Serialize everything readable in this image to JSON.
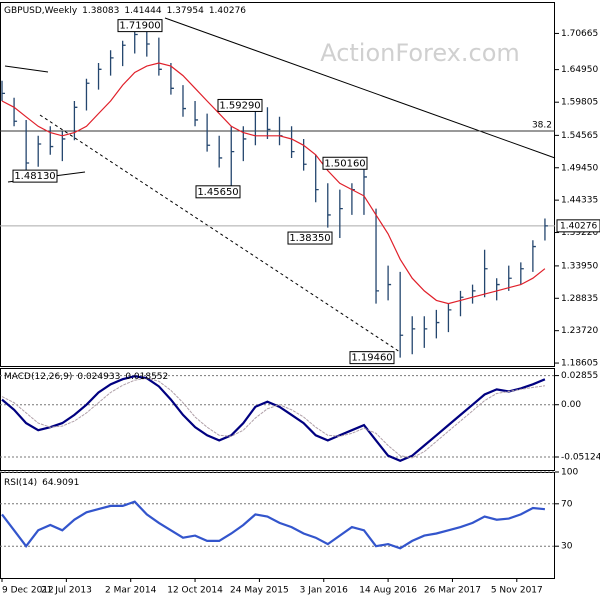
{
  "chart_data": [
    {
      "type": "ohlc",
      "title": "GBPUSD,Weekly",
      "header_values": [
        1.38083,
        1.41444,
        1.37954,
        1.40276
      ],
      "watermark": "ActionForex.com",
      "color": "#24466e",
      "x": [
        0,
        6,
        12,
        18,
        24,
        30,
        36,
        42,
        48,
        54,
        60,
        66,
        72,
        78,
        84,
        90,
        96,
        102,
        108,
        114,
        120,
        126,
        132,
        138,
        144,
        150,
        156,
        162,
        168,
        174,
        180,
        186,
        192,
        198,
        204,
        210,
        216,
        222,
        228,
        234,
        240,
        246,
        252,
        258,
        264,
        270
      ],
      "high": [
        1.632,
        1.605,
        1.57,
        1.545,
        1.56,
        1.552,
        1.6,
        1.635,
        1.66,
        1.68,
        1.695,
        1.719,
        1.712,
        1.7,
        1.66,
        1.625,
        1.6,
        1.58,
        1.545,
        1.56,
        1.56,
        1.5929,
        1.59,
        1.575,
        1.56,
        1.54,
        1.515,
        1.47,
        1.46,
        1.47,
        1.5016,
        1.43,
        1.34,
        1.33,
        1.26,
        1.26,
        1.27,
        1.28,
        1.3,
        1.31,
        1.365,
        1.32,
        1.34,
        1.345,
        1.38,
        1.41444
      ],
      "low": [
        1.6,
        1.56,
        1.4813,
        1.496,
        1.515,
        1.505,
        1.538,
        1.585,
        1.618,
        1.64,
        1.655,
        1.675,
        1.67,
        1.64,
        1.61,
        1.575,
        1.56,
        1.52,
        1.495,
        1.4565,
        1.505,
        1.53,
        1.54,
        1.53,
        1.51,
        1.49,
        1.44,
        1.4,
        1.3835,
        1.42,
        1.42,
        1.28,
        1.285,
        1.1946,
        1.2,
        1.21,
        1.225,
        1.235,
        1.26,
        1.28,
        1.29,
        1.285,
        1.3,
        1.31,
        1.33,
        1.37954
      ],
      "close": [
        1.612,
        1.568,
        1.502,
        1.532,
        1.528,
        1.54,
        1.59,
        1.628,
        1.65,
        1.668,
        1.688,
        1.705,
        1.69,
        1.65,
        1.62,
        1.588,
        1.57,
        1.53,
        1.51,
        1.52,
        1.54,
        1.585,
        1.555,
        1.545,
        1.52,
        1.5,
        1.46,
        1.42,
        1.43,
        1.46,
        1.48,
        1.3,
        1.31,
        1.23,
        1.24,
        1.24,
        1.25,
        1.27,
        1.29,
        1.3,
        1.335,
        1.31,
        1.32,
        1.335,
        1.37,
        1.40276
      ],
      "ma": {
        "color": "#e0202a",
        "values": [
          1.6,
          1.59,
          1.575,
          1.56,
          1.55,
          1.545,
          1.55,
          1.56,
          1.58,
          1.6,
          1.625,
          1.645,
          1.655,
          1.66,
          1.655,
          1.64,
          1.62,
          1.6,
          1.58,
          1.56,
          1.55,
          1.545,
          1.545,
          1.545,
          1.54,
          1.53,
          1.515,
          1.49,
          1.47,
          1.46,
          1.45,
          1.42,
          1.39,
          1.35,
          1.32,
          1.3,
          1.285,
          1.28,
          1.285,
          1.29,
          1.295,
          1.3,
          1.305,
          1.31,
          1.32,
          1.335
        ]
      },
      "annotations": [
        {
          "value": 1.719,
          "label": "1.71900"
        },
        {
          "value": 1.5929,
          "label": "1.59290"
        },
        {
          "value": 1.4813,
          "label": "1.48130"
        },
        {
          "value": 1.4565,
          "label": "1.45650"
        },
        {
          "value": 1.5016,
          "label": "1.50160"
        },
        {
          "value": 1.3835,
          "label": "1.38350"
        },
        {
          "value": 1.1946,
          "label": "1.19460"
        }
      ],
      "fib": {
        "ratio": 38.2,
        "level": 1.5525
      },
      "xlim": [
        -1,
        275
      ],
      "xticks": [
        {
          "value": 0,
          "label": "9 Dec 2012"
        },
        {
          "value": 32,
          "label": "21 Jul 2013"
        },
        {
          "value": 64,
          "label": "2 Mar 2014"
        },
        {
          "value": 96,
          "label": "12 Oct 2014"
        },
        {
          "value": 128,
          "label": "24 May 2015"
        },
        {
          "value": 160,
          "label": "3 Jan 2016"
        },
        {
          "value": 192,
          "label": "14 Aug 2016"
        },
        {
          "value": 224,
          "label": "26 Mar 2017"
        },
        {
          "value": 256,
          "label": "5 Nov 2017"
        }
      ],
      "ylim": [
        1.1814,
        1.7563
      ],
      "yticks": [
        1.70665,
        {
          "value": 1.6495,
          "label": "1.64950"
        },
        1.59805,
        1.54565,
        {
          "value": 1.4945,
          "label": "1.49450"
        },
        1.44335,
        {
          "value": 1.3922,
          "label": "1.39220"
        },
        {
          "value": 1.3395,
          "label": "1.33950"
        },
        1.28835,
        {
          "value": 1.2372,
          "label": "1.23720"
        },
        1.18605
      ]
    },
    {
      "type": "line",
      "title": "MACD(12,26,9)",
      "header_values": [
        0.024933,
        0.018552
      ],
      "series": [
        {
          "color": "#000080",
          "values": [
            0.005,
            -0.005,
            -0.018,
            -0.025,
            -0.022,
            -0.018,
            -0.01,
            0.0,
            0.012,
            0.02,
            0.025,
            0.028,
            0.026,
            0.018,
            0.005,
            -0.01,
            -0.022,
            -0.03,
            -0.035,
            -0.03,
            -0.018,
            -0.002,
            0.003,
            -0.002,
            -0.01,
            -0.018,
            -0.03,
            -0.035,
            -0.03,
            -0.025,
            -0.02,
            -0.035,
            -0.05,
            -0.055,
            -0.05,
            -0.04,
            -0.03,
            -0.02,
            -0.01,
            0.0,
            0.01,
            0.015,
            0.013,
            0.016,
            0.02,
            0.024933
          ]
        },
        {
          "color": "#b0a0a8",
          "values": [
            0.008,
            0.002,
            -0.008,
            -0.018,
            -0.022,
            -0.021,
            -0.016,
            -0.008,
            0.002,
            0.012,
            0.019,
            0.024,
            0.026,
            0.023,
            0.014,
            0.002,
            -0.012,
            -0.022,
            -0.03,
            -0.031,
            -0.025,
            -0.013,
            -0.004,
            0.0,
            -0.005,
            -0.012,
            -0.022,
            -0.03,
            -0.031,
            -0.028,
            -0.023,
            -0.028,
            -0.04,
            -0.05,
            -0.052,
            -0.046,
            -0.036,
            -0.026,
            -0.016,
            -0.006,
            0.004,
            0.011,
            0.013,
            0.015,
            0.017,
            0.018552
          ]
        }
      ],
      "ylim": [
        -0.064,
        0.036
      ],
      "yticks": [
        0.02855,
        {
          "value": 0,
          "label": "0.00"
        },
        -0.051245
      ]
    },
    {
      "type": "line",
      "title": "RSI(14)",
      "header_values": [
        64.9091
      ],
      "series": [
        {
          "color": "#3355cc",
          "values": [
            60,
            45,
            30,
            45,
            50,
            45,
            55,
            62,
            65,
            68,
            68,
            72,
            60,
            52,
            45,
            38,
            40,
            35,
            35,
            42,
            50,
            60,
            58,
            52,
            48,
            42,
            38,
            32,
            40,
            48,
            45,
            30,
            32,
            28,
            35,
            40,
            42,
            45,
            48,
            52,
            58,
            55,
            56,
            60,
            66,
            64.9091
          ]
        }
      ],
      "ylim": [
        0,
        100
      ],
      "yticks": [
        100,
        70,
        30
      ]
    }
  ]
}
